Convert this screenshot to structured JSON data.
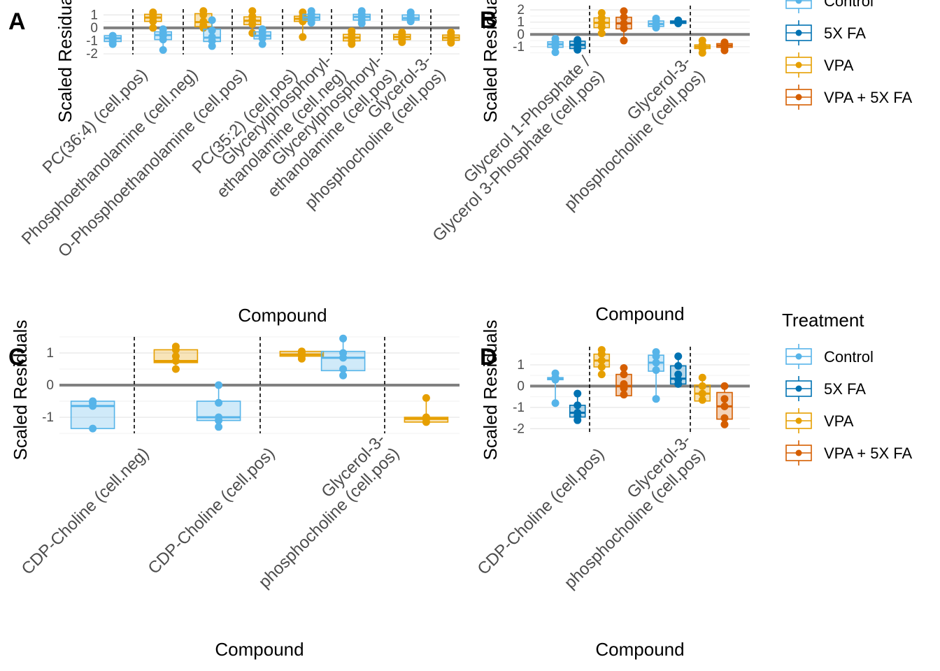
{
  "treatments": [
    {
      "name": "Control",
      "color": "#56B4E9"
    },
    {
      "name": "5X FA",
      "color": "#0072B2"
    },
    {
      "name": "VPA",
      "color": "#E69F00"
    },
    {
      "name": "VPA + 5X FA",
      "color": "#D55E00"
    }
  ],
  "legends": [
    {
      "title": "",
      "items": [
        "Control",
        "5X FA",
        "VPA",
        "VPA + 5X FA"
      ]
    },
    {
      "title": "Treatment",
      "items": [
        "Control",
        "5X FA",
        "VPA",
        "VPA + 5X FA"
      ]
    }
  ],
  "chart_data": [
    {
      "type": "box",
      "panel": "A",
      "xlabel": "Compound",
      "ylabel": "Scaled Residuals",
      "ylim": [
        -2.05,
        1.45
      ],
      "yticks": [
        -2,
        -1,
        0,
        1
      ],
      "categories": [
        [
          "PC(36:4) (cell.pos)"
        ],
        [
          "Phosphoethanolamine (cell.neg)"
        ],
        [
          "O-Phosphoethanolamine (cell.pos)"
        ],
        [
          "PC(35:2) (cell.pos)"
        ],
        [
          "Glycerylphosphoryl-",
          "ethanolamine (cell.neg)"
        ],
        [
          "Glycerylphosphoryl-",
          "ethanolamine (cell.pos)"
        ],
        [
          "Glycerol-3-",
          "phosphocholine (cell.pos)"
        ]
      ],
      "boxes": [
        {
          "category": 0,
          "treatment": "Control",
          "q1": -1.05,
          "median": -0.8,
          "q3": -0.6,
          "min": -1.3,
          "max": -0.45,
          "points": [
            -1.25,
            -1.05,
            -0.9,
            -0.75,
            -0.6
          ]
        },
        {
          "category": 0,
          "treatment": "VPA",
          "q1": 0.5,
          "median": 0.8,
          "q3": 1.05,
          "min": 0.0,
          "max": 1.25,
          "points": [
            0.0,
            0.5,
            0.8,
            1.0,
            1.2
          ]
        },
        {
          "category": 1,
          "treatment": "Control",
          "q1": -0.9,
          "median": -0.55,
          "q3": -0.3,
          "min": -1.7,
          "max": -0.05,
          "points": [
            -1.7,
            -0.9,
            -0.6,
            -0.4,
            -0.1
          ]
        },
        {
          "category": 1,
          "treatment": "VPA",
          "q1": 0.1,
          "median": 0.45,
          "q3": 1.1,
          "min": -0.05,
          "max": 1.35,
          "points": [
            0.0,
            0.2,
            0.5,
            1.0,
            1.3
          ]
        },
        {
          "category": 2,
          "treatment": "Control",
          "q1": -1.05,
          "median": -0.75,
          "q3": -0.1,
          "min": -1.45,
          "max": 0.65,
          "points": [
            -1.4,
            -1.0,
            -0.7,
            -0.2,
            0.6
          ]
        },
        {
          "category": 2,
          "treatment": "VPA",
          "q1": 0.25,
          "median": 0.55,
          "q3": 0.85,
          "min": -0.45,
          "max": 1.35,
          "points": [
            -0.4,
            0.3,
            0.6,
            0.9,
            1.3
          ]
        },
        {
          "category": 3,
          "treatment": "Control",
          "q1": -0.85,
          "median": -0.6,
          "q3": -0.3,
          "min": -1.3,
          "max": -0.05,
          "points": [
            -1.25,
            -0.8,
            -0.6,
            -0.35,
            -0.1
          ]
        },
        {
          "category": 3,
          "treatment": "VPA",
          "q1": 0.5,
          "median": 0.7,
          "q3": 0.9,
          "min": -0.7,
          "max": 1.25,
          "points": [
            -0.7,
            0.5,
            0.7,
            0.9,
            1.2
          ]
        },
        {
          "category": 4,
          "treatment": "Control",
          "q1": 0.6,
          "median": 0.8,
          "q3": 1.05,
          "min": 0.35,
          "max": 1.35,
          "points": [
            0.4,
            0.6,
            0.8,
            1.05,
            1.3
          ]
        },
        {
          "category": 4,
          "treatment": "VPA",
          "q1": -1.0,
          "median": -0.75,
          "q3": -0.5,
          "min": -1.3,
          "max": -0.2,
          "points": [
            -1.25,
            -1.0,
            -0.75,
            -0.5,
            -0.25
          ]
        },
        {
          "category": 5,
          "treatment": "Control",
          "q1": 0.6,
          "median": 0.85,
          "q3": 1.05,
          "min": 0.3,
          "max": 1.35,
          "points": [
            0.35,
            0.6,
            0.85,
            1.05,
            1.3
          ]
        },
        {
          "category": 5,
          "treatment": "VPA",
          "q1": -0.9,
          "median": -0.7,
          "q3": -0.5,
          "min": -1.15,
          "max": -0.3,
          "points": [
            -1.1,
            -0.9,
            -0.7,
            -0.5,
            -0.35
          ]
        },
        {
          "category": 6,
          "treatment": "Control",
          "q1": 0.6,
          "median": 0.75,
          "q3": 1.0,
          "min": 0.45,
          "max": 1.25,
          "points": [
            0.5,
            0.65,
            0.8,
            1.0,
            1.2
          ]
        },
        {
          "category": 6,
          "treatment": "VPA",
          "q1": -0.95,
          "median": -0.75,
          "q3": -0.55,
          "min": -1.2,
          "max": -0.3,
          "points": [
            -1.15,
            -0.95,
            -0.75,
            -0.55,
            -0.35
          ]
        }
      ]
    },
    {
      "type": "box",
      "panel": "B",
      "xlabel": "Compound",
      "ylabel": "Scaled Residuals",
      "ylim": [
        -1.75,
        2.35
      ],
      "yticks": [
        -1,
        0,
        1,
        2
      ],
      "categories": [
        [
          "Glycerol 1-Phosphate /",
          "Glycerol 3-Phosphate (cell.pos)"
        ],
        [
          "Glycerol-3-",
          "phosphocholine (cell.pos)"
        ]
      ],
      "boxes": [
        {
          "category": 0,
          "treatment": "Control",
          "q1": -1.05,
          "median": -0.8,
          "q3": -0.6,
          "min": -1.5,
          "max": -0.3,
          "points": [
            -1.45,
            -1.0,
            -0.8,
            -0.6,
            -0.35
          ]
        },
        {
          "category": 0,
          "treatment": "5X FA",
          "q1": -1.15,
          "median": -0.85,
          "q3": -0.55,
          "min": -1.3,
          "max": -0.4,
          "points": [
            -1.25,
            -1.1,
            -0.85,
            -0.6,
            -0.45
          ]
        },
        {
          "category": 0,
          "treatment": "VPA",
          "q1": 0.55,
          "median": 0.95,
          "q3": 1.35,
          "min": 0.05,
          "max": 1.8,
          "points": [
            0.1,
            0.6,
            0.95,
            1.35,
            1.75
          ]
        },
        {
          "category": 0,
          "treatment": "VPA + 5X FA",
          "q1": 0.45,
          "median": 0.9,
          "q3": 1.4,
          "min": -0.55,
          "max": 1.95,
          "points": [
            -0.5,
            0.5,
            0.9,
            1.4,
            1.9
          ]
        },
        {
          "category": 1,
          "treatment": "Control",
          "q1": 0.65,
          "median": 0.85,
          "q3": 1.1,
          "min": 0.5,
          "max": 1.35,
          "points": [
            0.55,
            0.7,
            0.85,
            1.1,
            1.3
          ]
        },
        {
          "category": 1,
          "treatment": "5X FA",
          "q1": 0.9,
          "median": 1.0,
          "q3": 1.1,
          "min": 0.85,
          "max": 1.2,
          "points": [
            0.9,
            0.95,
            1.0,
            1.05,
            1.15
          ]
        },
        {
          "category": 1,
          "treatment": "VPA",
          "q1": -1.15,
          "median": -1.0,
          "q3": -0.85,
          "min": -1.55,
          "max": -0.45,
          "points": [
            -1.5,
            -1.15,
            -1.0,
            -0.85,
            -0.5
          ]
        },
        {
          "category": 1,
          "treatment": "VPA + 5X FA",
          "q1": -1.05,
          "median": -0.9,
          "q3": -0.75,
          "min": -1.35,
          "max": -0.6,
          "points": [
            -1.3,
            -1.05,
            -0.9,
            -0.75,
            -0.65
          ]
        }
      ]
    },
    {
      "type": "box",
      "panel": "C",
      "xlabel": "Compound",
      "ylabel": "Scaled Residuals",
      "ylim": [
        -1.5,
        1.5
      ],
      "yticks": [
        -1,
        0,
        1
      ],
      "categories": [
        [
          "CDP-Choline (cell.neg)"
        ],
        [
          "CDP-Choline (cell.pos)"
        ],
        [
          "Glycerol-3-",
          "phosphocholine (cell.pos)"
        ]
      ],
      "boxes": [
        {
          "category": 0,
          "treatment": "Control",
          "q1": -1.35,
          "median": -0.65,
          "q3": -0.5,
          "min": -1.35,
          "max": -0.45,
          "points": [
            -1.35,
            -0.65,
            -0.55,
            -0.5
          ]
        },
        {
          "category": 0,
          "treatment": "VPA",
          "q1": 0.7,
          "median": 0.75,
          "q3": 1.1,
          "min": 0.5,
          "max": 1.25,
          "points": [
            0.5,
            0.75,
            0.9,
            1.1,
            1.2
          ]
        },
        {
          "category": 1,
          "treatment": "Control",
          "q1": -1.1,
          "median": -1.0,
          "q3": -0.5,
          "min": -1.3,
          "max": -0.05,
          "points": [
            -1.3,
            -1.1,
            -1.0,
            -0.55,
            0.0
          ]
        },
        {
          "category": 1,
          "treatment": "VPA",
          "q1": 0.9,
          "median": 0.95,
          "q3": 1.05,
          "min": 0.8,
          "max": 1.1,
          "points": [
            0.82,
            0.9,
            0.95,
            1.0,
            1.05
          ]
        },
        {
          "category": 2,
          "treatment": "Control",
          "q1": 0.45,
          "median": 0.85,
          "q3": 1.05,
          "min": 0.25,
          "max": 1.5,
          "points": [
            0.3,
            0.5,
            0.85,
            1.0,
            1.45
          ]
        },
        {
          "category": 2,
          "treatment": "VPA",
          "q1": -1.15,
          "median": -1.05,
          "q3": -1.0,
          "min": -1.2,
          "max": -0.4,
          "points": [
            -1.15,
            -1.05,
            -1.0,
            -0.4
          ]
        }
      ]
    },
    {
      "type": "box",
      "panel": "D",
      "xlabel": "Compound",
      "ylabel": "Scaled Residuals",
      "ylim": [
        -2.25,
        1.85
      ],
      "yticks": [
        -2,
        -1,
        0,
        1
      ],
      "categories": [
        [
          "CDP-Choline (cell.pos)"
        ],
        [
          "Glycerol-3-",
          "phosphocholine (cell.pos)"
        ]
      ],
      "boxes": [
        {
          "category": 0,
          "treatment": "Control",
          "q1": 0.3,
          "median": 0.35,
          "q3": 0.4,
          "min": -0.8,
          "max": 0.65,
          "points": [
            -0.8,
            0.3,
            0.35,
            0.4,
            0.6
          ]
        },
        {
          "category": 0,
          "treatment": "5X FA",
          "q1": -1.45,
          "median": -1.25,
          "q3": -0.9,
          "min": -1.65,
          "max": -0.3,
          "points": [
            -1.6,
            -1.4,
            -1.25,
            -0.9,
            -0.35
          ]
        },
        {
          "category": 0,
          "treatment": "VPA",
          "q1": 0.9,
          "median": 1.2,
          "q3": 1.5,
          "min": 0.5,
          "max": 1.75,
          "points": [
            0.55,
            0.9,
            1.2,
            1.5,
            1.7
          ]
        },
        {
          "category": 0,
          "treatment": "VPA + 5X FA",
          "q1": -0.45,
          "median": 0.0,
          "q3": 0.55,
          "min": -0.45,
          "max": 0.9,
          "points": [
            -0.4,
            -0.1,
            0.1,
            0.55,
            0.85
          ]
        },
        {
          "category": 1,
          "treatment": "Control",
          "q1": 0.7,
          "median": 1.1,
          "q3": 1.45,
          "min": -0.6,
          "max": 1.65,
          "points": [
            -0.6,
            0.75,
            1.1,
            1.4,
            1.6
          ]
        },
        {
          "category": 1,
          "treatment": "5X FA",
          "q1": 0.1,
          "median": 0.35,
          "q3": 0.95,
          "min": 0.05,
          "max": 1.45,
          "points": [
            0.1,
            0.3,
            0.55,
            0.95,
            1.4
          ]
        },
        {
          "category": 1,
          "treatment": "VPA",
          "q1": -0.7,
          "median": -0.35,
          "q3": 0.05,
          "min": -0.7,
          "max": 0.45,
          "points": [
            -0.65,
            -0.35,
            0.0,
            0.4
          ]
        },
        {
          "category": 1,
          "treatment": "VPA + 5X FA",
          "q1": -1.55,
          "median": -0.95,
          "q3": -0.3,
          "min": -1.85,
          "max": 0.05,
          "points": [
            -1.8,
            -1.5,
            -0.95,
            -0.6,
            0.0
          ]
        }
      ]
    }
  ]
}
